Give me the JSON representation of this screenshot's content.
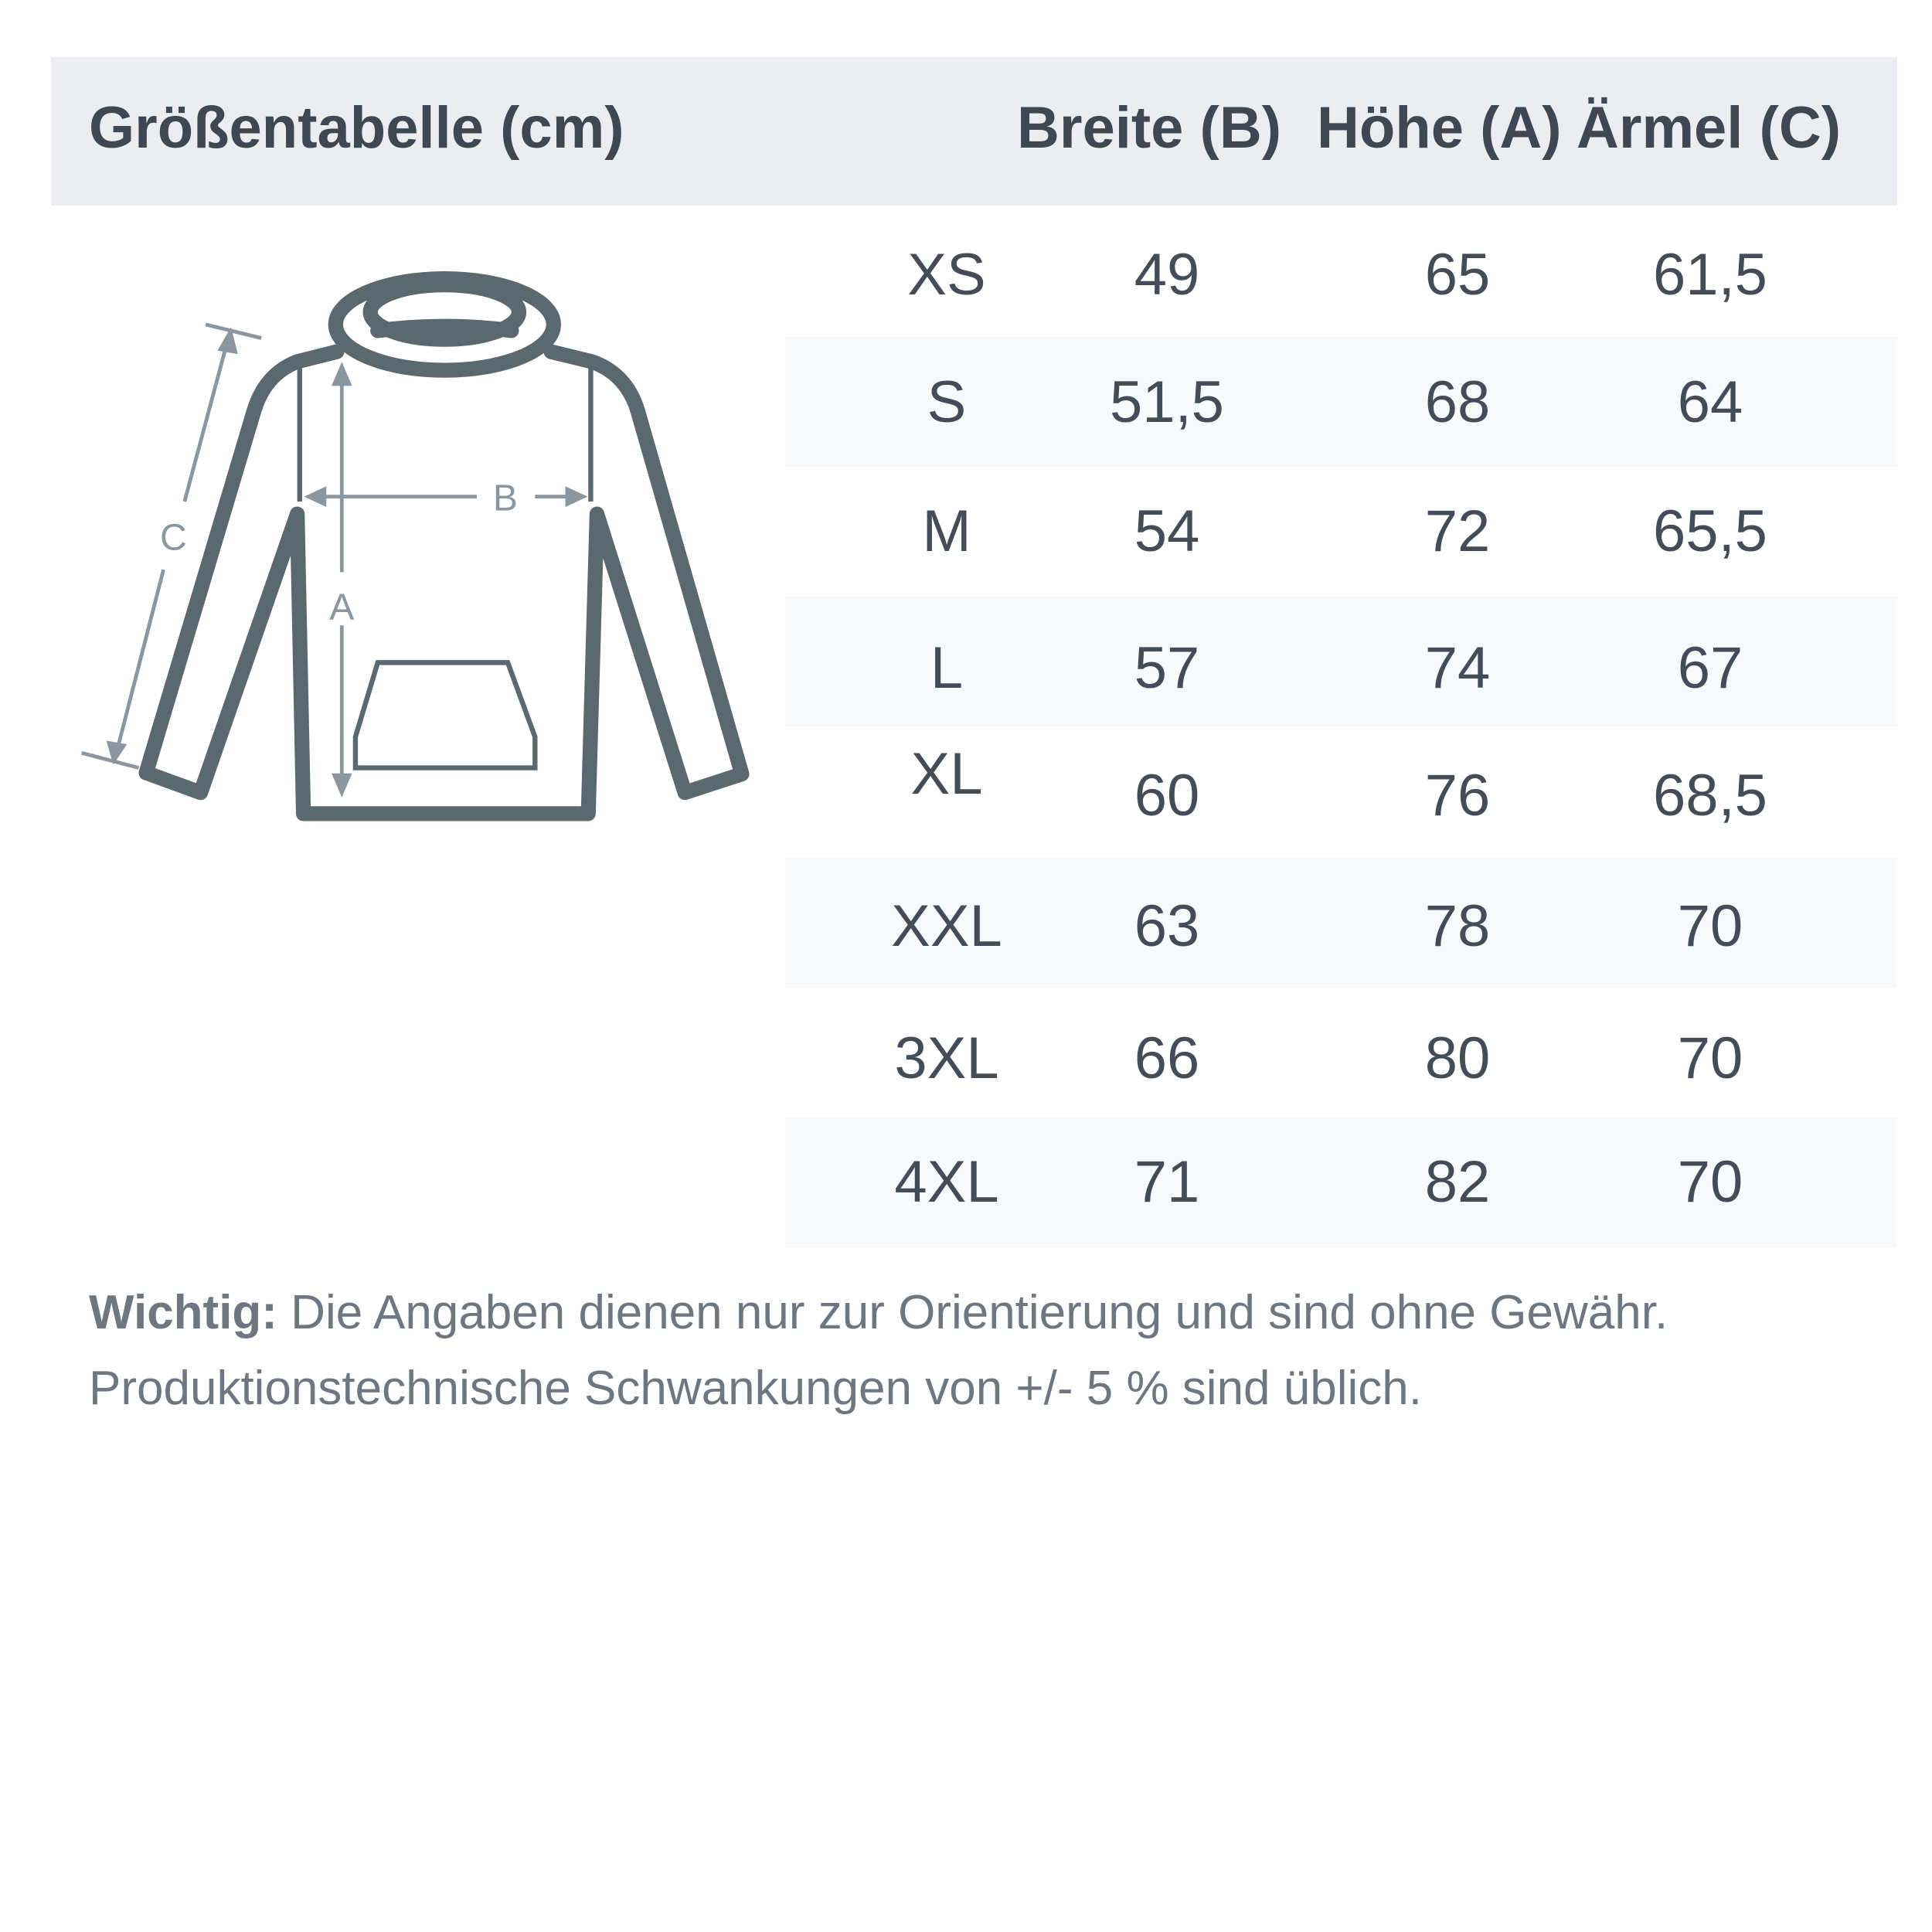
{
  "title": "Größentabelle (cm)",
  "columns": [
    "Breite (B)",
    "Höhe (A)",
    "Ärmel (C)"
  ],
  "rows": [
    {
      "size": "XS",
      "breite": "49",
      "hoehe": "65",
      "aermel": "61,5"
    },
    {
      "size": "S",
      "breite": "51,5",
      "hoehe": "68",
      "aermel": "64"
    },
    {
      "size": "M",
      "breite": "54",
      "hoehe": "72",
      "aermel": "65,5"
    },
    {
      "size": "L",
      "breite": "57",
      "hoehe": "74",
      "aermel": "67"
    },
    {
      "size": "XL",
      "breite": "60",
      "hoehe": "76",
      "aermel": "68,5"
    },
    {
      "size": "XXL",
      "breite": "63",
      "hoehe": "78",
      "aermel": "70"
    },
    {
      "size": "3XL",
      "breite": "66",
      "hoehe": "80",
      "aermel": "70"
    },
    {
      "size": "4XL",
      "breite": "71",
      "hoehe": "82",
      "aermel": "70"
    }
  ],
  "diagram": {
    "icon": "hoodie-icon",
    "label_a": "A",
    "label_b": "B",
    "label_c": "C"
  },
  "note": {
    "bold": "Wichtig:",
    "line1": " Die Angaben dienen nur zur Orientierung und sind ohne Gewähr.",
    "line2": "Produktionstechnische Schwankungen von +/- 5 % sind üblich."
  },
  "colors": {
    "header_bg": "#ebedf0",
    "stripe_bg": "#f8f9fb",
    "text": "#3f4752",
    "garment": "#5a6870",
    "measure": "#8a96a0"
  }
}
